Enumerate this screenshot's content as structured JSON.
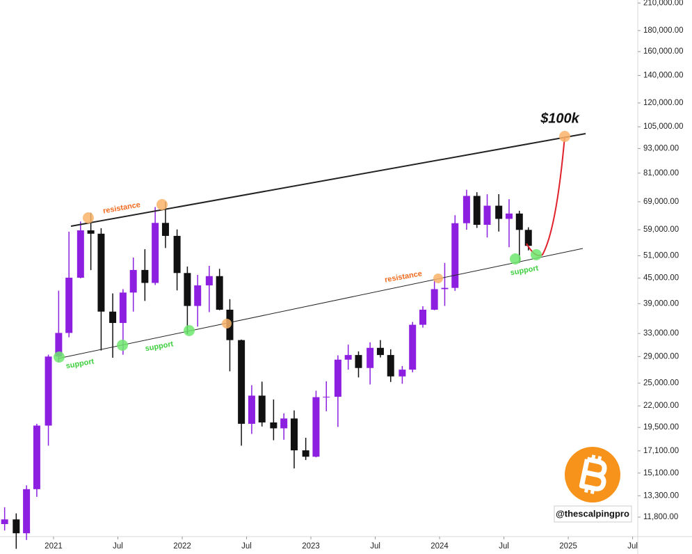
{
  "chart_data": {
    "type": "candlestick",
    "log_scale": true,
    "up_color": "#8c1fe0",
    "down_color": "#111111",
    "xlim": [
      2020.584,
      2025.54
    ],
    "xticks": [
      {
        "value": 2021,
        "label": "2021"
      },
      {
        "value": 2021.5,
        "label": "Jul"
      },
      {
        "value": 2022,
        "label": "2022"
      },
      {
        "value": 2022.5,
        "label": "Jul"
      },
      {
        "value": 2023,
        "label": "2023"
      },
      {
        "value": 2023.5,
        "label": "Jul"
      },
      {
        "value": 2024,
        "label": "2024"
      },
      {
        "value": 2024.5,
        "label": "Jul"
      },
      {
        "value": 2025,
        "label": "2025"
      },
      {
        "value": 2025.5,
        "label": "Jul"
      }
    ],
    "ylim": [
      10580,
      213600
    ],
    "yticks": [
      {
        "value": 210000,
        "label": "210,000.00"
      },
      {
        "value": 180000,
        "label": "180,000.00"
      },
      {
        "value": 160000,
        "label": "160,000.00"
      },
      {
        "value": 140000,
        "label": "140,000.00"
      },
      {
        "value": 120000,
        "label": "120,000.00"
      },
      {
        "value": 105000,
        "label": "105,000.00"
      },
      {
        "value": 93000,
        "label": "93,000.00"
      },
      {
        "value": 81000,
        "label": "81,000.00"
      },
      {
        "value": 69000,
        "label": "69,000.00"
      },
      {
        "value": 59000,
        "label": "59,000.00"
      },
      {
        "value": 51000,
        "label": "51,000.00"
      },
      {
        "value": 45000,
        "label": "45,000.00"
      },
      {
        "value": 39000,
        "label": "39,000.00"
      },
      {
        "value": 33000,
        "label": "33,000.00"
      },
      {
        "value": 29000,
        "label": "29,000.00"
      },
      {
        "value": 25000,
        "label": "25,000.00"
      },
      {
        "value": 22000,
        "label": "22,000.00"
      },
      {
        "value": 19500,
        "label": "19,500.00"
      },
      {
        "value": 17100,
        "label": "17,100.00"
      },
      {
        "value": 15100,
        "label": "15,100.00"
      },
      {
        "value": 13300,
        "label": "13,300.00"
      },
      {
        "value": 11800,
        "label": "11,800.00"
      }
    ],
    "x": [
      2020.62,
      2020.71,
      2020.79,
      2020.87,
      2020.96,
      2021.04,
      2021.12,
      2021.21,
      2021.29,
      2021.37,
      2021.46,
      2021.54,
      2021.62,
      2021.71,
      2021.79,
      2021.87,
      2021.96,
      2022.04,
      2022.12,
      2022.21,
      2022.29,
      2022.37,
      2022.46,
      2022.54,
      2022.62,
      2022.71,
      2022.79,
      2022.87,
      2022.96,
      2023.04,
      2023.12,
      2023.21,
      2023.29,
      2023.37,
      2023.46,
      2023.54,
      2023.62,
      2023.71,
      2023.79,
      2023.87,
      2023.96,
      2024.04,
      2024.12,
      2024.21,
      2024.29,
      2024.37,
      2024.46,
      2024.54,
      2024.62,
      2024.69
    ],
    "open": [
      11350,
      11650,
      10780,
      13800,
      19700,
      29000,
      33100,
      45100,
      58800,
      57700,
      37300,
      35000,
      41500,
      47100,
      43800,
      61300,
      57000,
      46300,
      38500,
      43200,
      45500,
      37700,
      31800,
      19900,
      23300,
      20050,
      19400,
      20500,
      17150,
      16550,
      23100,
      23150,
      28500,
      29250,
      27200,
      30450,
      29250,
      25950,
      26950,
      34650,
      37700,
      42300,
      42600,
      61200,
      71300,
      60650,
      67500,
      62700,
      64600,
      58950
    ],
    "high": [
      12470,
      12050,
      14100,
      19900,
      29300,
      41950,
      58350,
      61780,
      64850,
      59500,
      41300,
      42300,
      50500,
      52900,
      67000,
      69000,
      59100,
      48000,
      45800,
      48200,
      47400,
      40000,
      31900,
      24700,
      25200,
      22800,
      21100,
      21450,
      18400,
      23950,
      25250,
      29200,
      31000,
      29850,
      31400,
      31800,
      30200,
      27500,
      35200,
      38450,
      44700,
      49000,
      64000,
      73800,
      72800,
      71950,
      72000,
      70000,
      65600,
      59800
    ],
    "low": [
      10950,
      9880,
      10380,
      13220,
      17600,
      28100,
      32300,
      44950,
      47050,
      30000,
      28800,
      29300,
      37300,
      39600,
      43300,
      53250,
      42000,
      32900,
      34300,
      37200,
      37600,
      26700,
      17600,
      18800,
      19600,
      18150,
      18200,
      15500,
      16250,
      16500,
      21350,
      19550,
      26950,
      25800,
      24800,
      28850,
      25150,
      24900,
      26550,
      34100,
      37600,
      38500,
      41900,
      59000,
      59600,
      56500,
      58400,
      53500,
      49000,
      52550
    ],
    "close": [
      11650,
      10780,
      13800,
      19700,
      29000,
      33100,
      45100,
      58800,
      57700,
      37300,
      35000,
      41500,
      47100,
      43800,
      61300,
      57000,
      46300,
      38500,
      43200,
      45500,
      37700,
      31800,
      19900,
      23300,
      20050,
      19400,
      20500,
      17150,
      16550,
      23100,
      23150,
      28500,
      29250,
      27200,
      30450,
      29250,
      25950,
      26950,
      34650,
      37700,
      42300,
      42600,
      61200,
      71300,
      60650,
      67500,
      62700,
      64600,
      58950,
      53900
    ],
    "annotations": {
      "target": "$100k",
      "resistance": [
        "resistance",
        "resistance"
      ],
      "support": [
        "support",
        "support",
        "support"
      ]
    },
    "watermark": "@thescalpingpro"
  }
}
